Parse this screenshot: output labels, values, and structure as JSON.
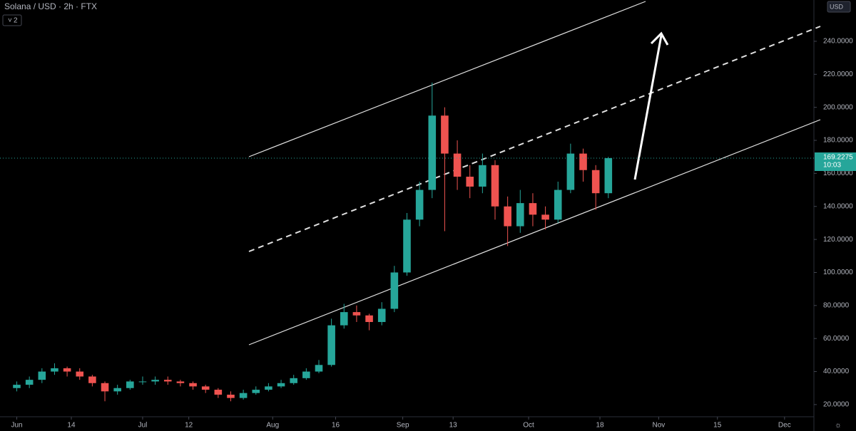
{
  "chart_data": {
    "type": "candlestick",
    "title": "Solana / USD · 2h · FTX",
    "indicator_count": "2",
    "currency": "USD",
    "last_price": 169.2275,
    "countdown": "10:03",
    "up_color": "#26a69a",
    "down_color": "#ef5350",
    "x": [
      0,
      3,
      6,
      9,
      12,
      15,
      18,
      21,
      24,
      27,
      30,
      33,
      36,
      39,
      42,
      45,
      48,
      51,
      54,
      57,
      60,
      63,
      66,
      69,
      72,
      75,
      78,
      81,
      84,
      87,
      90,
      93,
      96,
      99,
      102,
      105,
      108,
      111,
      114,
      117,
      120,
      123,
      126,
      129,
      132,
      135,
      138,
      141
    ],
    "open": [
      30,
      32,
      35,
      40,
      42,
      40,
      37,
      33,
      28,
      30,
      34,
      34,
      35,
      34,
      33,
      31,
      29,
      26,
      24,
      27,
      29,
      31,
      33,
      36,
      40,
      44,
      68,
      76,
      74,
      70,
      78,
      100,
      132,
      150,
      195,
      172,
      158,
      152,
      165,
      140,
      128,
      142,
      135,
      132,
      150,
      172,
      162,
      148
    ],
    "high": [
      34,
      37,
      42,
      45,
      43,
      42,
      38,
      34,
      32,
      35,
      37,
      37,
      37,
      35,
      34,
      32,
      30,
      28,
      29,
      31,
      33,
      35,
      38,
      42,
      47,
      72,
      81,
      80,
      75,
      82,
      104,
      136,
      155,
      215,
      200,
      180,
      165,
      172,
      168,
      146,
      150,
      148,
      140,
      155,
      178,
      175,
      165,
      170
    ],
    "low": [
      28,
      30,
      33,
      38,
      37,
      35,
      31,
      22,
      26,
      29,
      32,
      32,
      32,
      31,
      29,
      27,
      24,
      22,
      23,
      26,
      28,
      30,
      32,
      35,
      39,
      43,
      66,
      70,
      65,
      68,
      76,
      98,
      128,
      145,
      125,
      150,
      145,
      148,
      132,
      116,
      124,
      128,
      126,
      130,
      148,
      155,
      138,
      145
    ],
    "close": [
      32,
      35,
      40,
      42,
      40,
      37,
      33,
      28,
      30,
      34,
      34,
      35,
      34,
      33,
      31,
      29,
      26,
      24,
      27,
      29,
      31,
      33,
      36,
      40,
      44,
      68,
      76,
      74,
      70,
      78,
      100,
      132,
      150,
      195,
      172,
      158,
      152,
      165,
      140,
      128,
      142,
      135,
      132,
      150,
      172,
      162,
      148,
      169.2275
    ],
    "xlim": [
      -4,
      190
    ],
    "xticks": [
      {
        "value": 0,
        "label": "Jun"
      },
      {
        "value": 13,
        "label": "14"
      },
      {
        "value": 30,
        "label": "Jul"
      },
      {
        "value": 41,
        "label": "12"
      },
      {
        "value": 61,
        "label": "Aug"
      },
      {
        "value": 76,
        "label": "16"
      },
      {
        "value": 92,
        "label": "Sep"
      },
      {
        "value": 104,
        "label": "13"
      },
      {
        "value": 122,
        "label": "Oct"
      },
      {
        "value": 139,
        "label": "18"
      },
      {
        "value": 153,
        "label": "Nov"
      },
      {
        "value": 167,
        "label": "15"
      },
      {
        "value": 183,
        "label": "Dec"
      }
    ],
    "ylim": [
      4,
      265
    ],
    "yticks": [
      {
        "value": 20,
        "label": "20.0000"
      },
      {
        "value": 40,
        "label": "40.0000"
      },
      {
        "value": 60,
        "label": "60.0000"
      },
      {
        "value": 80,
        "label": "80.0000"
      },
      {
        "value": 100,
        "label": "100.0000"
      },
      {
        "value": 120,
        "label": "120.0000"
      },
      {
        "value": 140,
        "label": "140.0000"
      },
      {
        "value": 160,
        "label": "160.0000"
      },
      {
        "value": 180,
        "label": "180.0000"
      },
      {
        "value": 200,
        "label": "200.0000"
      },
      {
        "value": 220,
        "label": "220.0000"
      },
      {
        "value": 240,
        "label": "240.0000"
      }
    ],
    "grid": false
  }
}
